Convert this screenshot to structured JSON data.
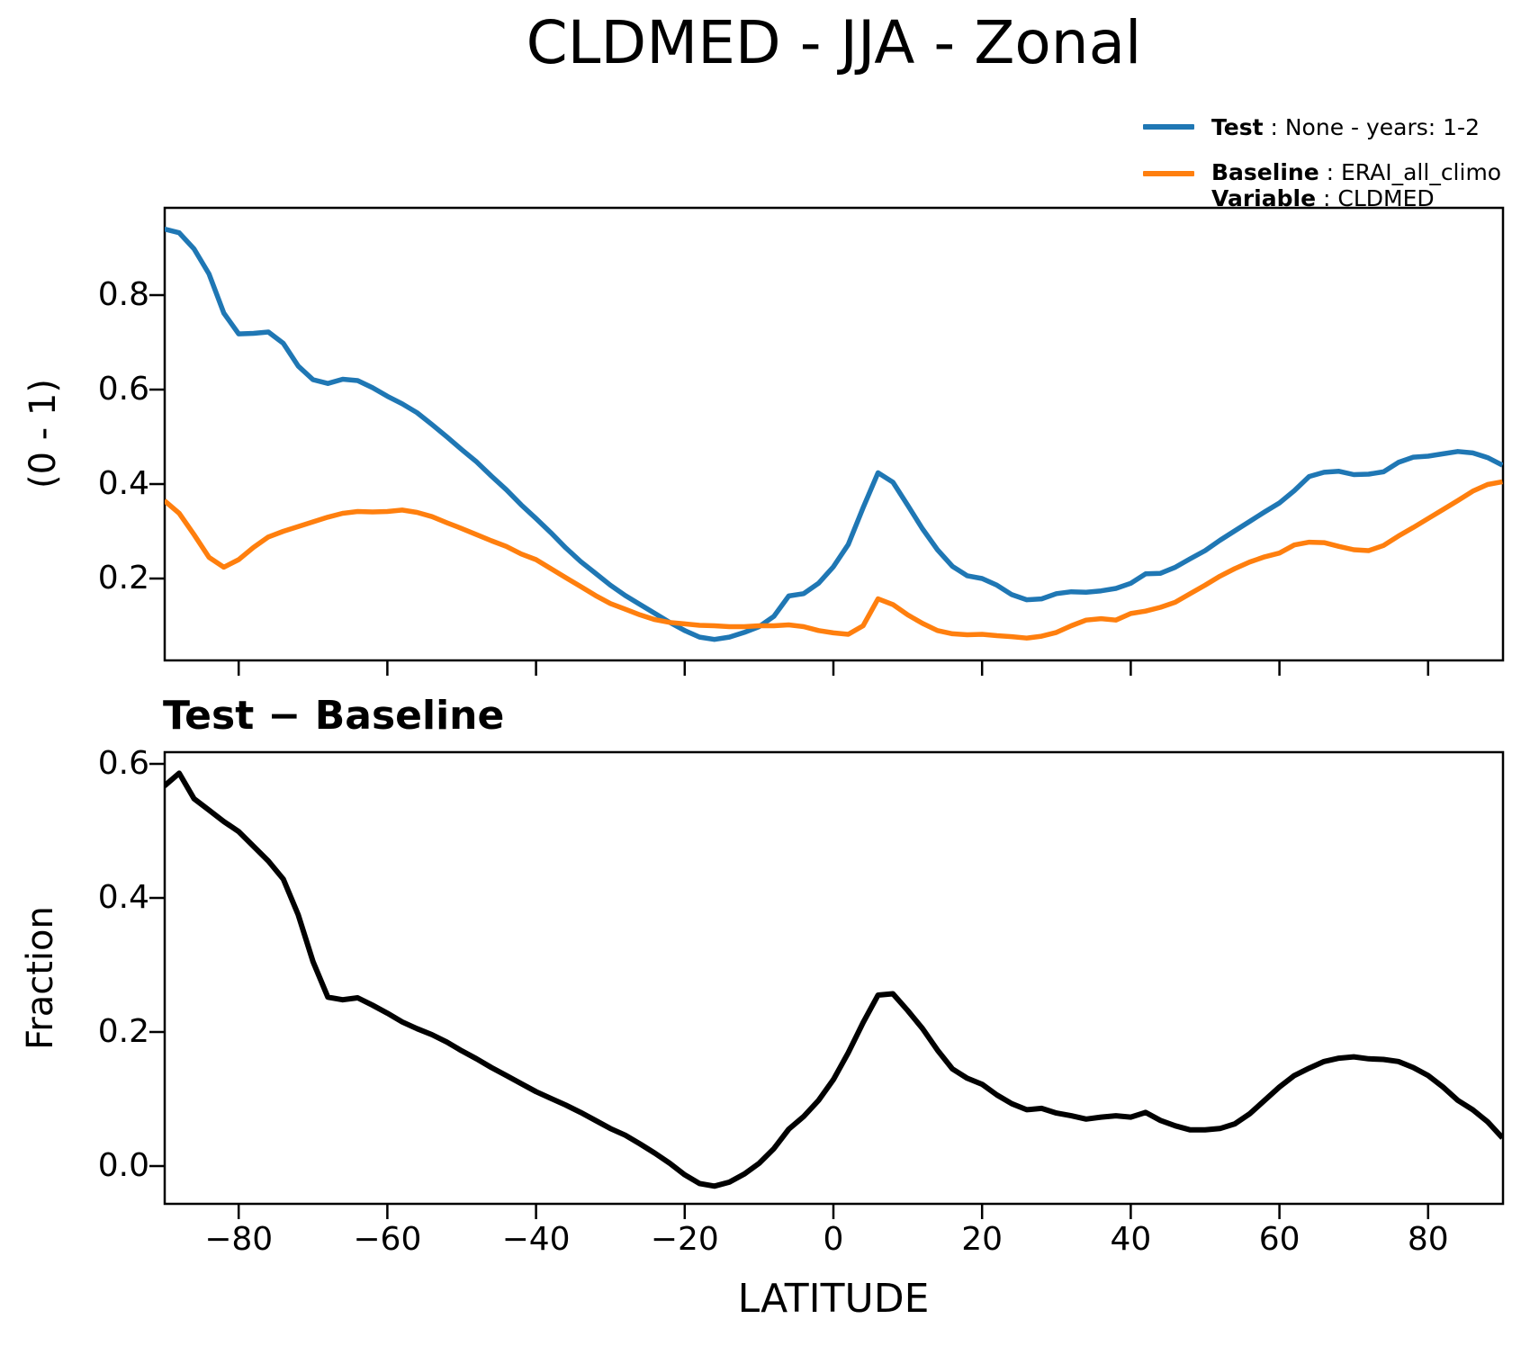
{
  "title": "CLDMED - JJA - Zonal",
  "colors": {
    "test": "#1f77b4",
    "baseline": "#ff7f0e",
    "diff": "#000000",
    "axis": "#000000"
  },
  "legend": {
    "test_bold": "Test",
    "test_rest": " : None - years: 1-2",
    "baseline_bold": "Baseline",
    "baseline_rest": " : ERAI_all_climo",
    "variable_bold": "Variable",
    "variable_rest": " : CLDMED"
  },
  "top_plot": {
    "ylabel": "(0 - 1)",
    "ytick_labels": [
      "0.8",
      "0.6",
      "0.4",
      "0.2"
    ]
  },
  "bottom_plot": {
    "title": "Test − Baseline",
    "ylabel": "Fraction",
    "xlabel": "LATITUDE",
    "ytick_labels": [
      "0.6",
      "0.4",
      "0.2",
      "0.0"
    ],
    "xtick_labels": [
      "−80",
      "−60",
      "−40",
      "−20",
      "0",
      "20",
      "40",
      "60",
      "80"
    ]
  },
  "chart_data": [
    {
      "type": "line",
      "title": "CLDMED - JJA - Zonal",
      "ylabel": "(0 - 1)",
      "xlabel": "",
      "xlim": [
        -90,
        90
      ],
      "ylim": [
        0.03,
        0.985
      ],
      "xticks": [
        -80,
        -60,
        -40,
        -20,
        0,
        20,
        40,
        60,
        80
      ],
      "yticks": [
        0.8,
        0.6,
        0.4,
        0.2
      ],
      "grid": false,
      "legend_position": "upper right outside",
      "x": [
        -90,
        -88,
        -86,
        -84,
        -82,
        -80,
        -78,
        -76,
        -74,
        -72,
        -70,
        -68,
        -66,
        -64,
        -62,
        -60,
        -58,
        -56,
        -54,
        -52,
        -50,
        -48,
        -46,
        -44,
        -42,
        -40,
        -38,
        -36,
        -34,
        -32,
        -30,
        -28,
        -26,
        -24,
        -22,
        -20,
        -18,
        -16,
        -14,
        -12,
        -10,
        -8,
        -6,
        -4,
        -2,
        0,
        2,
        4,
        6,
        8,
        10,
        12,
        14,
        16,
        18,
        20,
        22,
        24,
        26,
        28,
        30,
        32,
        34,
        36,
        38,
        40,
        42,
        44,
        46,
        48,
        50,
        52,
        54,
        56,
        58,
        60,
        62,
        64,
        66,
        68,
        70,
        72,
        74,
        76,
        78,
        80,
        82,
        84,
        86,
        88,
        90
      ],
      "series": [
        {
          "name": "Test : None - years: 1-2",
          "color": "#1f77b4",
          "values": [
            0.94,
            0.932,
            0.898,
            0.845,
            0.762,
            0.718,
            0.719,
            0.722,
            0.698,
            0.65,
            0.621,
            0.613,
            0.622,
            0.619,
            0.604,
            0.586,
            0.57,
            0.551,
            0.526,
            0.5,
            0.473,
            0.447,
            0.417,
            0.388,
            0.356,
            0.327,
            0.297,
            0.265,
            0.236,
            0.211,
            0.186,
            0.164,
            0.145,
            0.126,
            0.107,
            0.09,
            0.076,
            0.071,
            0.076,
            0.086,
            0.098,
            0.12,
            0.163,
            0.168,
            0.19,
            0.225,
            0.272,
            0.35,
            0.424,
            0.404,
            0.355,
            0.305,
            0.261,
            0.226,
            0.206,
            0.2,
            0.186,
            0.166,
            0.155,
            0.157,
            0.168,
            0.172,
            0.171,
            0.174,
            0.179,
            0.19,
            0.21,
            0.211,
            0.224,
            0.242,
            0.259,
            0.281,
            0.301,
            0.321,
            0.341,
            0.36,
            0.386,
            0.416,
            0.425,
            0.427,
            0.42,
            0.421,
            0.426,
            0.446,
            0.457,
            0.459,
            0.464,
            0.469,
            0.466,
            0.456,
            0.44
          ]
        },
        {
          "name": "Baseline : ERAI_all_climo (CLDMED)",
          "color": "#ff7f0e",
          "values": [
            0.365,
            0.338,
            0.293,
            0.245,
            0.224,
            0.24,
            0.266,
            0.288,
            0.3,
            0.31,
            0.32,
            0.33,
            0.338,
            0.342,
            0.341,
            0.342,
            0.345,
            0.34,
            0.331,
            0.318,
            0.306,
            0.293,
            0.28,
            0.268,
            0.252,
            0.24,
            0.221,
            0.202,
            0.183,
            0.164,
            0.147,
            0.135,
            0.123,
            0.113,
            0.107,
            0.104,
            0.101,
            0.1,
            0.098,
            0.098,
            0.1,
            0.1,
            0.102,
            0.098,
            0.09,
            0.085,
            0.082,
            0.1,
            0.157,
            0.145,
            0.123,
            0.105,
            0.09,
            0.083,
            0.081,
            0.082,
            0.079,
            0.077,
            0.074,
            0.078,
            0.086,
            0.1,
            0.112,
            0.115,
            0.112,
            0.126,
            0.131,
            0.139,
            0.15,
            0.168,
            0.186,
            0.205,
            0.221,
            0.235,
            0.246,
            0.254,
            0.271,
            0.277,
            0.276,
            0.268,
            0.261,
            0.259,
            0.27,
            0.29,
            0.308,
            0.327,
            0.346,
            0.365,
            0.385,
            0.399,
            0.405
          ]
        }
      ]
    },
    {
      "type": "line",
      "title": "Test − Baseline",
      "ylabel": "Fraction",
      "xlabel": "LATITUDE",
      "xlim": [
        -90,
        90
      ],
      "ylim": [
        -0.056,
        0.617
      ],
      "xticks": [
        -80,
        -60,
        -40,
        -20,
        0,
        20,
        40,
        60,
        80
      ],
      "yticks": [
        0.6,
        0.4,
        0.2,
        0.0
      ],
      "grid": false,
      "x": [
        -90,
        -88,
        -86,
        -84,
        -82,
        -80,
        -78,
        -76,
        -74,
        -72,
        -70,
        -68,
        -66,
        -64,
        -62,
        -60,
        -58,
        -56,
        -54,
        -52,
        -50,
        -48,
        -46,
        -44,
        -42,
        -40,
        -38,
        -36,
        -34,
        -32,
        -30,
        -28,
        -26,
        -24,
        -22,
        -20,
        -18,
        -16,
        -14,
        -12,
        -10,
        -8,
        -6,
        -4,
        -2,
        0,
        2,
        4,
        6,
        8,
        10,
        12,
        14,
        16,
        18,
        20,
        22,
        24,
        26,
        28,
        30,
        32,
        34,
        36,
        38,
        40,
        42,
        44,
        46,
        48,
        50,
        52,
        54,
        56,
        58,
        60,
        62,
        64,
        66,
        68,
        70,
        72,
        74,
        76,
        78,
        80,
        82,
        84,
        86,
        88,
        90
      ],
      "series": [
        {
          "name": "Test − Baseline",
          "color": "#000000",
          "values": [
            0.567,
            0.586,
            0.548,
            0.531,
            0.514,
            0.499,
            0.477,
            0.455,
            0.428,
            0.375,
            0.305,
            0.252,
            0.248,
            0.251,
            0.24,
            0.228,
            0.215,
            0.205,
            0.196,
            0.185,
            0.172,
            0.16,
            0.147,
            0.135,
            0.123,
            0.111,
            0.101,
            0.091,
            0.08,
            0.068,
            0.056,
            0.046,
            0.033,
            0.019,
            0.004,
            -0.013,
            -0.026,
            -0.03,
            -0.024,
            -0.012,
            0.004,
            0.026,
            0.055,
            0.074,
            0.098,
            0.129,
            0.169,
            0.214,
            0.255,
            0.257,
            0.232,
            0.205,
            0.173,
            0.145,
            0.131,
            0.122,
            0.106,
            0.093,
            0.084,
            0.086,
            0.079,
            0.075,
            0.07,
            0.073,
            0.075,
            0.073,
            0.08,
            0.068,
            0.06,
            0.054,
            0.054,
            0.056,
            0.063,
            0.078,
            0.098,
            0.118,
            0.135,
            0.146,
            0.156,
            0.161,
            0.163,
            0.16,
            0.159,
            0.156,
            0.147,
            0.135,
            0.118,
            0.098,
            0.084,
            0.066,
            0.042
          ]
        }
      ]
    }
  ]
}
